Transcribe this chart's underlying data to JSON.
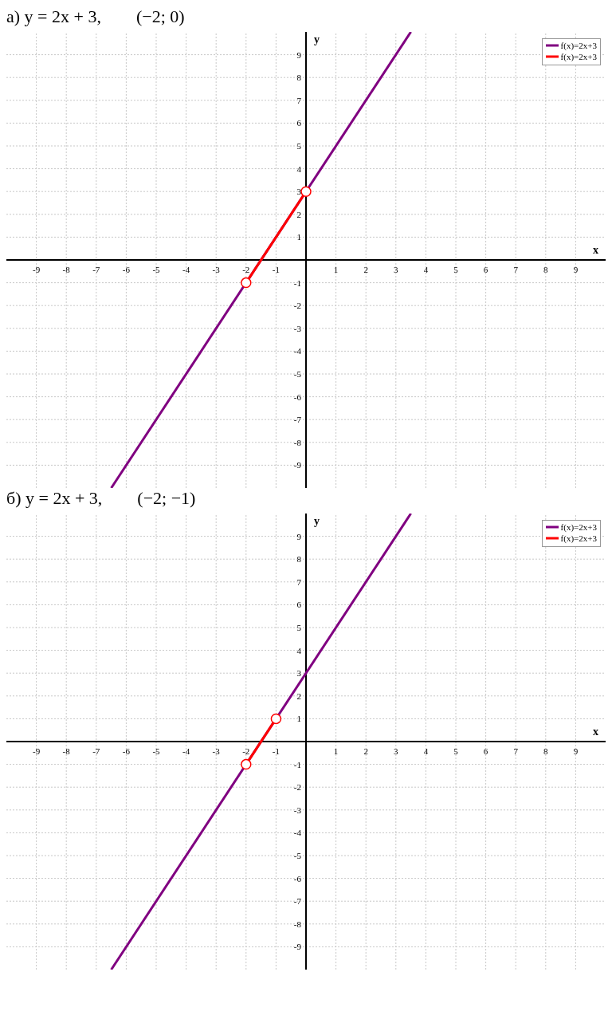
{
  "chart_data": [
    {
      "type": "line",
      "title": "а) y = 2x + 3,        (−2; 0)",
      "xlabel": "x",
      "ylabel": "y",
      "xlim": [
        -10,
        10
      ],
      "ylim": [
        -10,
        10
      ],
      "xticks": [
        -9,
        -8,
        -7,
        -6,
        -5,
        -4,
        -3,
        -2,
        -1,
        1,
        2,
        3,
        4,
        5,
        6,
        7,
        8,
        9
      ],
      "yticks": [
        -9,
        -8,
        -7,
        -6,
        -5,
        -4,
        -3,
        -2,
        -1,
        1,
        2,
        3,
        4,
        5,
        6,
        7,
        8,
        9
      ],
      "grid": true,
      "legend": "top right",
      "line_style": "solid",
      "series": [
        {
          "name": "f(x)=2x+3",
          "color": "#800080",
          "x": [
            -6.5,
            3.5
          ],
          "values": [
            -10,
            10
          ],
          "marker": "none"
        },
        {
          "name": "f(x)=2x+3",
          "color": "#ff0000",
          "x": [
            -2,
            0
          ],
          "values": [
            -1,
            3
          ],
          "marker": "circle"
        }
      ]
    },
    {
      "type": "line",
      "title": "б) y = 2x + 3,        (−2; −1)",
      "xlabel": "x",
      "ylabel": "y",
      "xlim": [
        -10,
        10
      ],
      "ylim": [
        -10,
        10
      ],
      "xticks": [
        -9,
        -8,
        -7,
        -6,
        -5,
        -4,
        -3,
        -2,
        -1,
        1,
        2,
        3,
        4,
        5,
        6,
        7,
        8,
        9
      ],
      "yticks": [
        -9,
        -8,
        -7,
        -6,
        -5,
        -4,
        -3,
        -2,
        -1,
        1,
        2,
        3,
        4,
        5,
        6,
        7,
        8,
        9
      ],
      "grid": true,
      "legend": "top right",
      "line_style": "solid",
      "series": [
        {
          "name": "f(x)=2x+3",
          "color": "#800080",
          "x": [
            -6.5,
            3.5
          ],
          "values": [
            -10,
            10
          ],
          "marker": "none"
        },
        {
          "name": "f(x)=2x+3",
          "color": "#ff0000",
          "x": [
            -2,
            -1
          ],
          "values": [
            -1,
            1
          ],
          "marker": "circle"
        }
      ]
    }
  ]
}
